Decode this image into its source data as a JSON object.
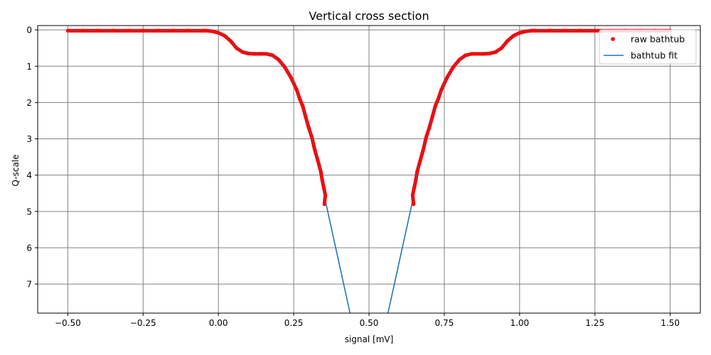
{
  "chart_data": {
    "type": "line",
    "title": "Vertical cross section",
    "xlabel": "signal [mV]",
    "ylabel": "Q-scale",
    "xlim": [
      -0.6,
      1.6
    ],
    "ylim": [
      7.8,
      -0.12
    ],
    "y_inverted": true,
    "grid": true,
    "x_ticks": [
      -0.5,
      -0.25,
      0.0,
      0.25,
      0.5,
      0.75,
      1.0,
      1.25,
      1.5
    ],
    "x_tick_labels": [
      "−0.50",
      "−0.25",
      "0.00",
      "0.25",
      "0.50",
      "0.75",
      "1.00",
      "1.25",
      "1.50"
    ],
    "y_ticks": [
      0,
      1,
      2,
      3,
      4,
      5,
      6,
      7
    ],
    "y_tick_labels": [
      "0",
      "1",
      "2",
      "3",
      "4",
      "5",
      "6",
      "7"
    ],
    "legend_position": "top-right",
    "series": [
      {
        "name": "raw bathtub",
        "style": "points",
        "color": "#ff0000",
        "points": [
          [
            -0.5,
            0.02
          ],
          [
            -0.45,
            0.02
          ],
          [
            -0.4,
            0.02
          ],
          [
            -0.35,
            0.02
          ],
          [
            -0.3,
            0.02
          ],
          [
            -0.25,
            0.02
          ],
          [
            -0.2,
            0.02
          ],
          [
            -0.15,
            0.02
          ],
          [
            -0.1,
            0.02
          ],
          [
            -0.05,
            0.02
          ],
          [
            -0.04,
            0.02
          ],
          [
            -0.02,
            0.04
          ],
          [
            0.0,
            0.08
          ],
          [
            0.02,
            0.16
          ],
          [
            0.04,
            0.3
          ],
          [
            0.06,
            0.5
          ],
          [
            0.08,
            0.61
          ],
          [
            0.1,
            0.65
          ],
          [
            0.12,
            0.66
          ],
          [
            0.14,
            0.66
          ],
          [
            0.16,
            0.66
          ],
          [
            0.18,
            0.7
          ],
          [
            0.2,
            0.82
          ],
          [
            0.22,
            1.02
          ],
          [
            0.24,
            1.3
          ],
          [
            0.26,
            1.65
          ],
          [
            0.27,
            1.9
          ],
          [
            0.28,
            2.1
          ],
          [
            0.29,
            2.4
          ],
          [
            0.3,
            2.7
          ],
          [
            0.31,
            2.95
          ],
          [
            0.32,
            3.3
          ],
          [
            0.33,
            3.6
          ],
          [
            0.34,
            3.9
          ],
          [
            0.345,
            4.15
          ],
          [
            0.35,
            4.35
          ],
          [
            0.355,
            4.55
          ],
          [
            0.352,
            4.8
          ],
          [
            0.648,
            4.8
          ],
          [
            0.645,
            4.55
          ],
          [
            0.65,
            4.35
          ],
          [
            0.655,
            4.15
          ],
          [
            0.66,
            3.9
          ],
          [
            0.67,
            3.6
          ],
          [
            0.68,
            3.3
          ],
          [
            0.69,
            2.95
          ],
          [
            0.7,
            2.7
          ],
          [
            0.71,
            2.4
          ],
          [
            0.72,
            2.1
          ],
          [
            0.73,
            1.9
          ],
          [
            0.74,
            1.65
          ],
          [
            0.76,
            1.3
          ],
          [
            0.78,
            1.02
          ],
          [
            0.8,
            0.82
          ],
          [
            0.82,
            0.7
          ],
          [
            0.84,
            0.66
          ],
          [
            0.86,
            0.66
          ],
          [
            0.88,
            0.66
          ],
          [
            0.9,
            0.65
          ],
          [
            0.92,
            0.61
          ],
          [
            0.94,
            0.5
          ],
          [
            0.96,
            0.3
          ],
          [
            0.98,
            0.16
          ],
          [
            1.0,
            0.08
          ],
          [
            1.02,
            0.04
          ],
          [
            1.04,
            0.02
          ],
          [
            1.05,
            0.02
          ],
          [
            1.1,
            0.02
          ],
          [
            1.15,
            0.02
          ],
          [
            1.2,
            0.02
          ],
          [
            1.25,
            0.02
          ],
          [
            1.3,
            0.02
          ],
          [
            1.35,
            0.02
          ],
          [
            1.4,
            0.02
          ],
          [
            1.45,
            0.02
          ],
          [
            1.5,
            0.02
          ]
        ]
      },
      {
        "name": "bathtub fit",
        "style": "line",
        "color": "#1f77b4",
        "segments": [
          [
            [
              0.355,
              4.7
            ],
            [
              0.437,
              7.8
            ]
          ],
          [
            [
              0.645,
              4.7
            ],
            [
              0.563,
              7.8
            ]
          ]
        ]
      }
    ]
  }
}
